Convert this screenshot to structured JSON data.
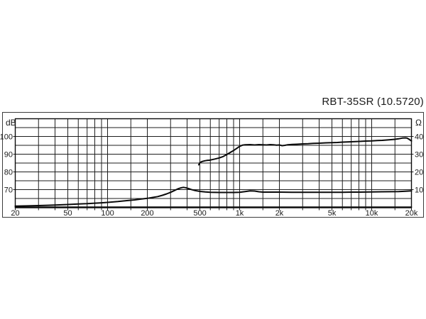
{
  "chart_data": {
    "type": "line",
    "title": "RBT-35SR (10.5720)",
    "grid": true,
    "legend": "none",
    "x_axis": {
      "unit": "Hz",
      "scale": "log",
      "min": 20,
      "max": 20000,
      "ticks": [
        {
          "value": 20,
          "label": "20"
        },
        {
          "value": 50,
          "label": "50"
        },
        {
          "value": 100,
          "label": "100"
        },
        {
          "value": 200,
          "label": "200"
        },
        {
          "value": 500,
          "label": "500"
        },
        {
          "value": 1000,
          "label": "1k"
        },
        {
          "value": 2000,
          "label": "2k"
        },
        {
          "value": 5000,
          "label": "5k"
        },
        {
          "value": 10000,
          "label": "10k"
        },
        {
          "value": 20000,
          "label": "20k"
        }
      ],
      "gridline_frequencies": [
        20,
        30,
        40,
        50,
        60,
        70,
        80,
        90,
        100,
        150,
        200,
        300,
        400,
        500,
        600,
        700,
        800,
        900,
        1000,
        1500,
        2000,
        3000,
        4000,
        5000,
        6000,
        7000,
        8000,
        9000,
        10000,
        15000,
        20000
      ]
    },
    "y_axis_left": {
      "unit": "dB",
      "min": 60,
      "max": 110,
      "gridline_step": 5,
      "gridline_values": [
        65,
        70,
        75,
        80,
        85,
        90,
        95,
        100,
        105
      ],
      "ticks": [
        {
          "value": 100,
          "label": "100"
        },
        {
          "value": 90,
          "label": "90"
        },
        {
          "value": 80,
          "label": "80"
        },
        {
          "value": 70,
          "label": "70"
        }
      ]
    },
    "y_axis_right": {
      "unit": "Ω",
      "min": 0,
      "max": 50,
      "ticks": [
        {
          "value": 40,
          "label": "40"
        },
        {
          "value": 30,
          "label": "30"
        },
        {
          "value": 20,
          "label": "20"
        },
        {
          "value": 10,
          "label": "10"
        }
      ]
    },
    "series": [
      {
        "name": "sound-pressure-level",
        "axis": "left",
        "unit": "dB",
        "color": "#0a0a0a",
        "points": [
          [
            490,
            84.0
          ],
          [
            500,
            85.2
          ],
          [
            520,
            85.9
          ],
          [
            545,
            86.3
          ],
          [
            565,
            86.5
          ],
          [
            590,
            86.6
          ],
          [
            615,
            86.9
          ],
          [
            650,
            87.3
          ],
          [
            700,
            87.9
          ],
          [
            750,
            88.7
          ],
          [
            800,
            89.8
          ],
          [
            850,
            91.0
          ],
          [
            900,
            92.1
          ],
          [
            950,
            93.3
          ],
          [
            1000,
            94.4
          ],
          [
            1050,
            95.1
          ],
          [
            1100,
            95.3
          ],
          [
            1200,
            95.4
          ],
          [
            1300,
            95.2
          ],
          [
            1400,
            95.4
          ],
          [
            1500,
            95.3
          ],
          [
            1600,
            95.2
          ],
          [
            1700,
            95.4
          ],
          [
            1800,
            95.3
          ],
          [
            1900,
            95.1
          ],
          [
            2000,
            95.2
          ],
          [
            2100,
            94.8
          ],
          [
            2200,
            95.0
          ],
          [
            2300,
            95.3
          ],
          [
            2500,
            95.5
          ],
          [
            2700,
            95.6
          ],
          [
            3000,
            95.8
          ],
          [
            3300,
            95.9
          ],
          [
            3600,
            96.1
          ],
          [
            4000,
            96.2
          ],
          [
            4500,
            96.4
          ],
          [
            5000,
            96.5
          ],
          [
            5500,
            96.6
          ],
          [
            6000,
            96.8
          ],
          [
            7000,
            97.0
          ],
          [
            8000,
            97.2
          ],
          [
            9000,
            97.4
          ],
          [
            10000,
            97.5
          ],
          [
            11000,
            97.7
          ],
          [
            12000,
            97.8
          ],
          [
            13000,
            98.0
          ],
          [
            14000,
            98.2
          ],
          [
            15000,
            98.4
          ],
          [
            16000,
            98.7
          ],
          [
            17000,
            99.1
          ],
          [
            18000,
            99.2
          ],
          [
            18500,
            99.1
          ],
          [
            19000,
            98.6
          ],
          [
            20000,
            97.5
          ]
        ]
      },
      {
        "name": "impedance",
        "axis": "right",
        "unit": "Ω",
        "color": "#0a0a0a",
        "points": [
          [
            20,
            0.7
          ],
          [
            25,
            0.85
          ],
          [
            30,
            1.0
          ],
          [
            35,
            1.15
          ],
          [
            40,
            1.3
          ],
          [
            50,
            1.6
          ],
          [
            60,
            1.9
          ],
          [
            70,
            2.1
          ],
          [
            80,
            2.35
          ],
          [
            90,
            2.55
          ],
          [
            100,
            2.8
          ],
          [
            120,
            3.3
          ],
          [
            140,
            3.8
          ],
          [
            160,
            4.2
          ],
          [
            180,
            4.7
          ],
          [
            200,
            5.1
          ],
          [
            220,
            5.6
          ],
          [
            240,
            6.1
          ],
          [
            260,
            6.8
          ],
          [
            280,
            7.6
          ],
          [
            300,
            8.5
          ],
          [
            320,
            9.5
          ],
          [
            340,
            10.4
          ],
          [
            360,
            11.0
          ],
          [
            375,
            11.3
          ],
          [
            390,
            11.1
          ],
          [
            410,
            10.6
          ],
          [
            430,
            10.1
          ],
          [
            460,
            9.5
          ],
          [
            500,
            9.0
          ],
          [
            550,
            8.7
          ],
          [
            600,
            8.5
          ],
          [
            650,
            8.45
          ],
          [
            700,
            8.4
          ],
          [
            800,
            8.4
          ],
          [
            900,
            8.4
          ],
          [
            1000,
            8.5
          ],
          [
            1100,
            8.9
          ],
          [
            1200,
            9.3
          ],
          [
            1300,
            9.2
          ],
          [
            1400,
            8.8
          ],
          [
            1500,
            8.6
          ],
          [
            1700,
            8.6
          ],
          [
            2000,
            8.6
          ],
          [
            2500,
            8.5
          ],
          [
            3000,
            8.5
          ],
          [
            3500,
            8.5
          ],
          [
            4000,
            8.5
          ],
          [
            5000,
            8.5
          ],
          [
            6000,
            8.5
          ],
          [
            7000,
            8.6
          ],
          [
            8000,
            8.6
          ],
          [
            9000,
            8.65
          ],
          [
            10000,
            8.7
          ],
          [
            12000,
            8.8
          ],
          [
            14000,
            8.85
          ],
          [
            16000,
            8.9
          ],
          [
            18000,
            9.1
          ],
          [
            20000,
            9.3
          ]
        ]
      }
    ]
  }
}
